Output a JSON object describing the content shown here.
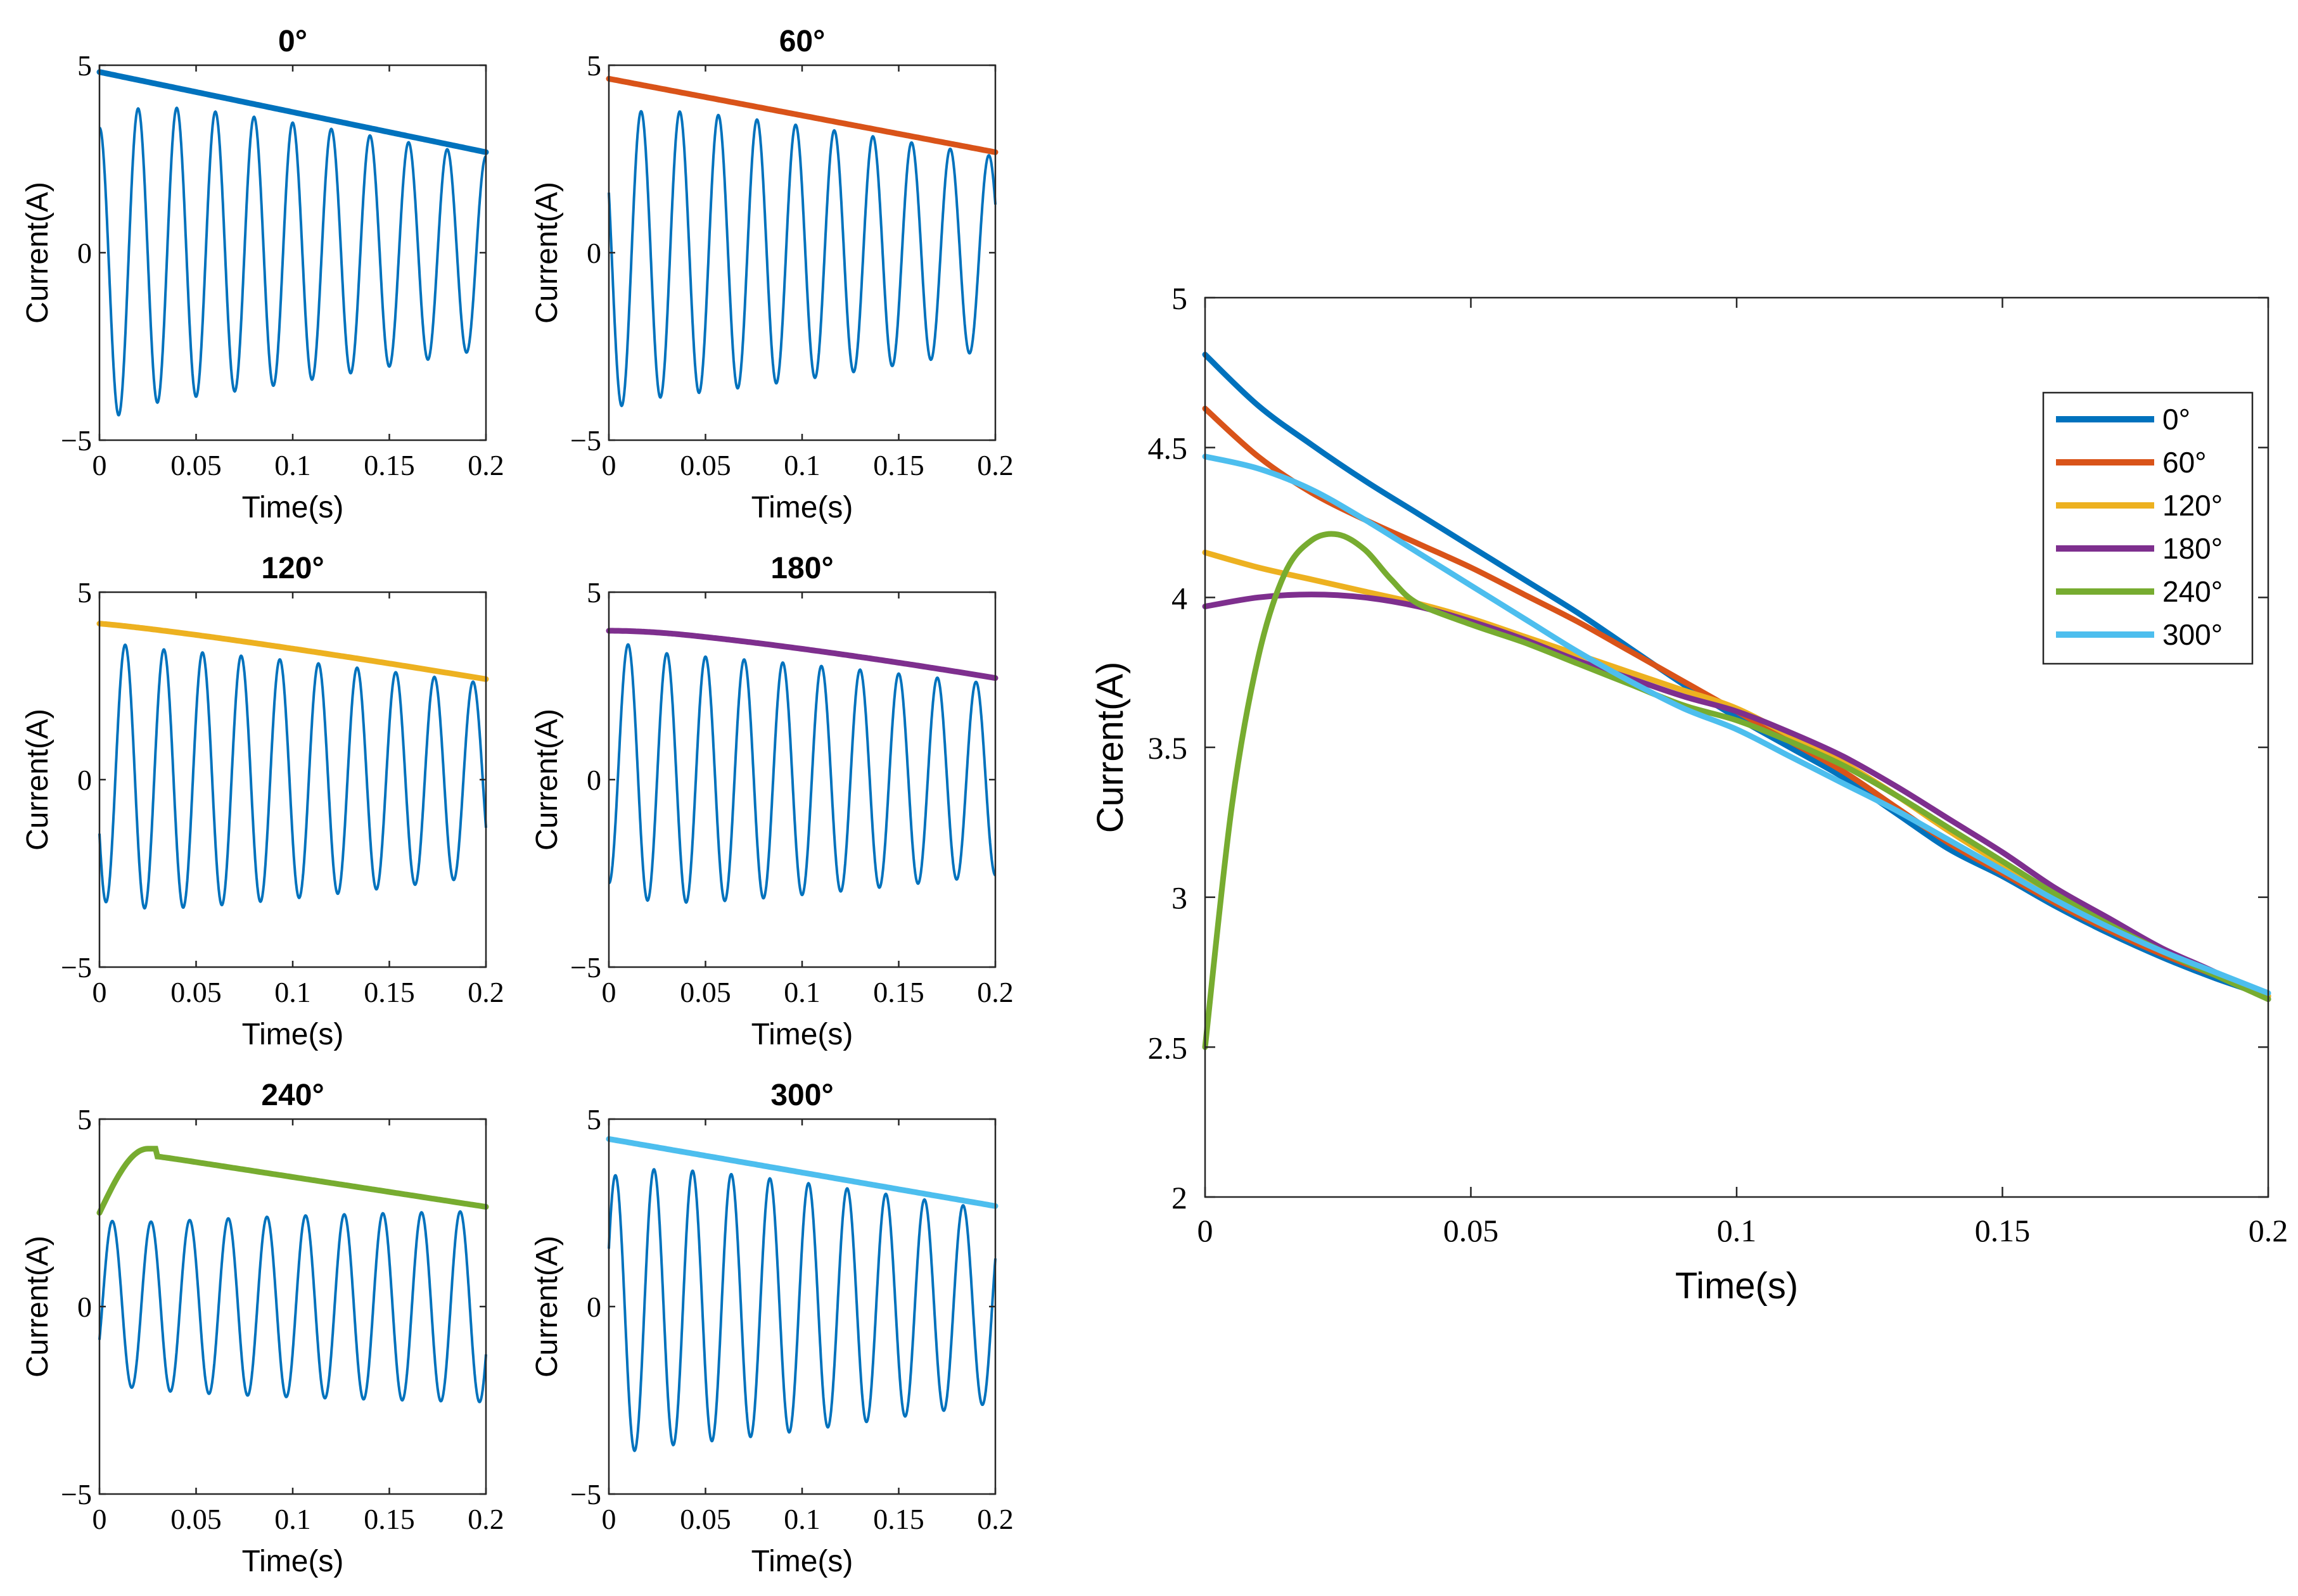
{
  "chart_data": [
    {
      "type": "line",
      "title": "0°",
      "xlabel": "Time(s)",
      "ylabel": "Current(A)",
      "xlim": [
        0,
        0.2
      ],
      "ylim": [
        -5,
        5
      ],
      "xticks": [
        "0",
        "0.05",
        "0.1",
        "0.15",
        "0.2"
      ],
      "yticks": [
        "-5",
        "0",
        "5"
      ],
      "phase_deg": 0,
      "envelope": {
        "start": 4.82,
        "end": 2.68
      },
      "series": [
        {
          "name": "phase current",
          "color": "#0072BD"
        },
        {
          "name": "envelope",
          "color": "#0072BD"
        }
      ]
    },
    {
      "type": "line",
      "title": "60°",
      "xlabel": "Time(s)",
      "ylabel": "Current(A)",
      "xlim": [
        0,
        0.2
      ],
      "ylim": [
        -5,
        5
      ],
      "xticks": [
        "0",
        "0.05",
        "0.1",
        "0.15",
        "0.2"
      ],
      "yticks": [
        "-5",
        "0",
        "5"
      ],
      "phase_deg": 60,
      "envelope": {
        "start": 4.64,
        "end": 2.68
      },
      "series": [
        {
          "name": "phase current",
          "color": "#0072BD"
        },
        {
          "name": "envelope",
          "color": "#D95319"
        }
      ]
    },
    {
      "type": "line",
      "title": "120°",
      "xlabel": "Time(s)",
      "ylabel": "Current(A)",
      "xlim": [
        0,
        0.2
      ],
      "ylim": [
        -5,
        5
      ],
      "xticks": [
        "0",
        "0.05",
        "0.1",
        "0.15",
        "0.2"
      ],
      "yticks": [
        "-5",
        "0",
        "5"
      ],
      "phase_deg": 120,
      "envelope": {
        "start": 4.16,
        "end": 2.68
      },
      "series": [
        {
          "name": "phase current",
          "color": "#0072BD"
        },
        {
          "name": "envelope",
          "color": "#EDB120"
        }
      ]
    },
    {
      "type": "line",
      "title": "180°",
      "xlabel": "Time(s)",
      "ylabel": "Current(A)",
      "xlim": [
        0,
        0.2
      ],
      "ylim": [
        -5,
        5
      ],
      "xticks": [
        "0",
        "0.05",
        "0.1",
        "0.15",
        "0.2"
      ],
      "yticks": [
        "-5",
        "0",
        "5"
      ],
      "phase_deg": 180,
      "envelope": {
        "start": 3.97,
        "end": 2.66
      },
      "series": [
        {
          "name": "phase current",
          "color": "#0072BD"
        },
        {
          "name": "envelope",
          "color": "#7E2F8E"
        }
      ]
    },
    {
      "type": "line",
      "title": "240°",
      "xlabel": "Time(s)",
      "ylabel": "Current(A)",
      "xlim": [
        0,
        0.2
      ],
      "ylim": [
        -5,
        5
      ],
      "xticks": [
        "0",
        "0.05",
        "0.1",
        "0.15",
        "0.2"
      ],
      "yticks": [
        "-5",
        "0",
        "5"
      ],
      "phase_deg": 240,
      "envelope": {
        "start": 2.5,
        "end": 2.66
      },
      "series": [
        {
          "name": "phase current",
          "color": "#0072BD"
        },
        {
          "name": "envelope",
          "color": "#77AC30"
        }
      ]
    },
    {
      "type": "line",
      "title": "300°",
      "xlabel": "Time(s)",
      "ylabel": "Current(A)",
      "xlim": [
        0,
        0.2
      ],
      "ylim": [
        -5,
        5
      ],
      "xticks": [
        "0",
        "0.05",
        "0.1",
        "0.15",
        "0.2"
      ],
      "yticks": [
        "-5",
        "0",
        "5"
      ],
      "phase_deg": 300,
      "envelope": {
        "start": 4.47,
        "end": 2.68
      },
      "series": [
        {
          "name": "phase current",
          "color": "#0072BD"
        },
        {
          "name": "envelope",
          "color": "#4DBEEE"
        }
      ]
    },
    {
      "type": "line",
      "title": "",
      "xlabel": "Time(s)",
      "ylabel": "Current(A)",
      "xlim": [
        0,
        0.2
      ],
      "ylim": [
        2,
        5
      ],
      "xticks": [
        "0",
        "0.05",
        "0.1",
        "0.15",
        "0.2"
      ],
      "yticks": [
        "2",
        "2.5",
        "3",
        "3.5",
        "4",
        "4.5",
        "5"
      ],
      "legend": "top-right",
      "series": [
        {
          "name": "0°",
          "color": "#0072BD",
          "x": [
            0,
            0.01,
            0.02,
            0.03,
            0.04,
            0.05,
            0.06,
            0.07,
            0.08,
            0.09,
            0.1,
            0.11,
            0.12,
            0.13,
            0.14,
            0.15,
            0.16,
            0.17,
            0.18,
            0.19,
            0.2
          ],
          "y": [
            4.81,
            4.64,
            4.51,
            4.39,
            4.28,
            4.17,
            4.06,
            3.95,
            3.83,
            3.71,
            3.6,
            3.5,
            3.4,
            3.28,
            3.16,
            3.07,
            2.97,
            2.88,
            2.8,
            2.73,
            2.67
          ]
        },
        {
          "name": "60°",
          "color": "#D95319",
          "x": [
            0,
            0.01,
            0.02,
            0.03,
            0.04,
            0.05,
            0.06,
            0.07,
            0.08,
            0.09,
            0.1,
            0.11,
            0.12,
            0.13,
            0.14,
            0.15,
            0.16,
            0.17,
            0.18,
            0.19,
            0.2
          ],
          "y": [
            4.63,
            4.47,
            4.35,
            4.26,
            4.18,
            4.1,
            4.01,
            3.92,
            3.82,
            3.72,
            3.62,
            3.52,
            3.42,
            3.3,
            3.18,
            3.08,
            2.98,
            2.89,
            2.81,
            2.74,
            2.67
          ]
        },
        {
          "name": "120°",
          "color": "#EDB120",
          "x": [
            0,
            0.01,
            0.02,
            0.03,
            0.04,
            0.05,
            0.06,
            0.07,
            0.08,
            0.09,
            0.1,
            0.11,
            0.12,
            0.13,
            0.14,
            0.15,
            0.16,
            0.17,
            0.18,
            0.19,
            0.2
          ],
          "y": [
            4.15,
            4.1,
            4.06,
            4.02,
            3.98,
            3.93,
            3.87,
            3.81,
            3.75,
            3.69,
            3.63,
            3.54,
            3.45,
            3.34,
            3.22,
            3.11,
            3.01,
            2.91,
            2.82,
            2.75,
            2.67
          ]
        },
        {
          "name": "180°",
          "color": "#7E2F8E",
          "x": [
            0,
            0.01,
            0.02,
            0.03,
            0.04,
            0.05,
            0.06,
            0.07,
            0.08,
            0.09,
            0.1,
            0.11,
            0.12,
            0.13,
            0.14,
            0.15,
            0.16,
            0.17,
            0.18,
            0.19,
            0.2
          ],
          "y": [
            3.97,
            4.0,
            4.01,
            4.0,
            3.97,
            3.92,
            3.86,
            3.79,
            3.73,
            3.67,
            3.62,
            3.55,
            3.47,
            3.37,
            3.26,
            3.15,
            3.03,
            2.93,
            2.83,
            2.75,
            2.66
          ]
        },
        {
          "name": "240°",
          "color": "#77AC30",
          "x": [
            0,
            0.005,
            0.01,
            0.015,
            0.02,
            0.025,
            0.03,
            0.035,
            0.04,
            0.05,
            0.06,
            0.07,
            0.08,
            0.09,
            0.1,
            0.11,
            0.12,
            0.13,
            0.14,
            0.15,
            0.16,
            0.17,
            0.18,
            0.19,
            0.2
          ],
          "y": [
            2.5,
            3.3,
            3.8,
            4.08,
            4.19,
            4.21,
            4.16,
            4.06,
            3.98,
            3.91,
            3.85,
            3.78,
            3.71,
            3.64,
            3.59,
            3.52,
            3.44,
            3.34,
            3.23,
            3.12,
            3.01,
            2.91,
            2.82,
            2.74,
            2.66
          ]
        },
        {
          "name": "300°",
          "color": "#4DBEEE",
          "x": [
            0,
            0.01,
            0.02,
            0.03,
            0.04,
            0.05,
            0.06,
            0.07,
            0.08,
            0.09,
            0.1,
            0.11,
            0.12,
            0.13,
            0.14,
            0.15,
            0.16,
            0.17,
            0.18,
            0.19,
            0.2
          ],
          "y": [
            4.47,
            4.43,
            4.36,
            4.26,
            4.15,
            4.04,
            3.93,
            3.82,
            3.72,
            3.63,
            3.56,
            3.47,
            3.38,
            3.29,
            3.19,
            3.09,
            2.99,
            2.9,
            2.82,
            2.75,
            2.68
          ]
        }
      ]
    }
  ]
}
